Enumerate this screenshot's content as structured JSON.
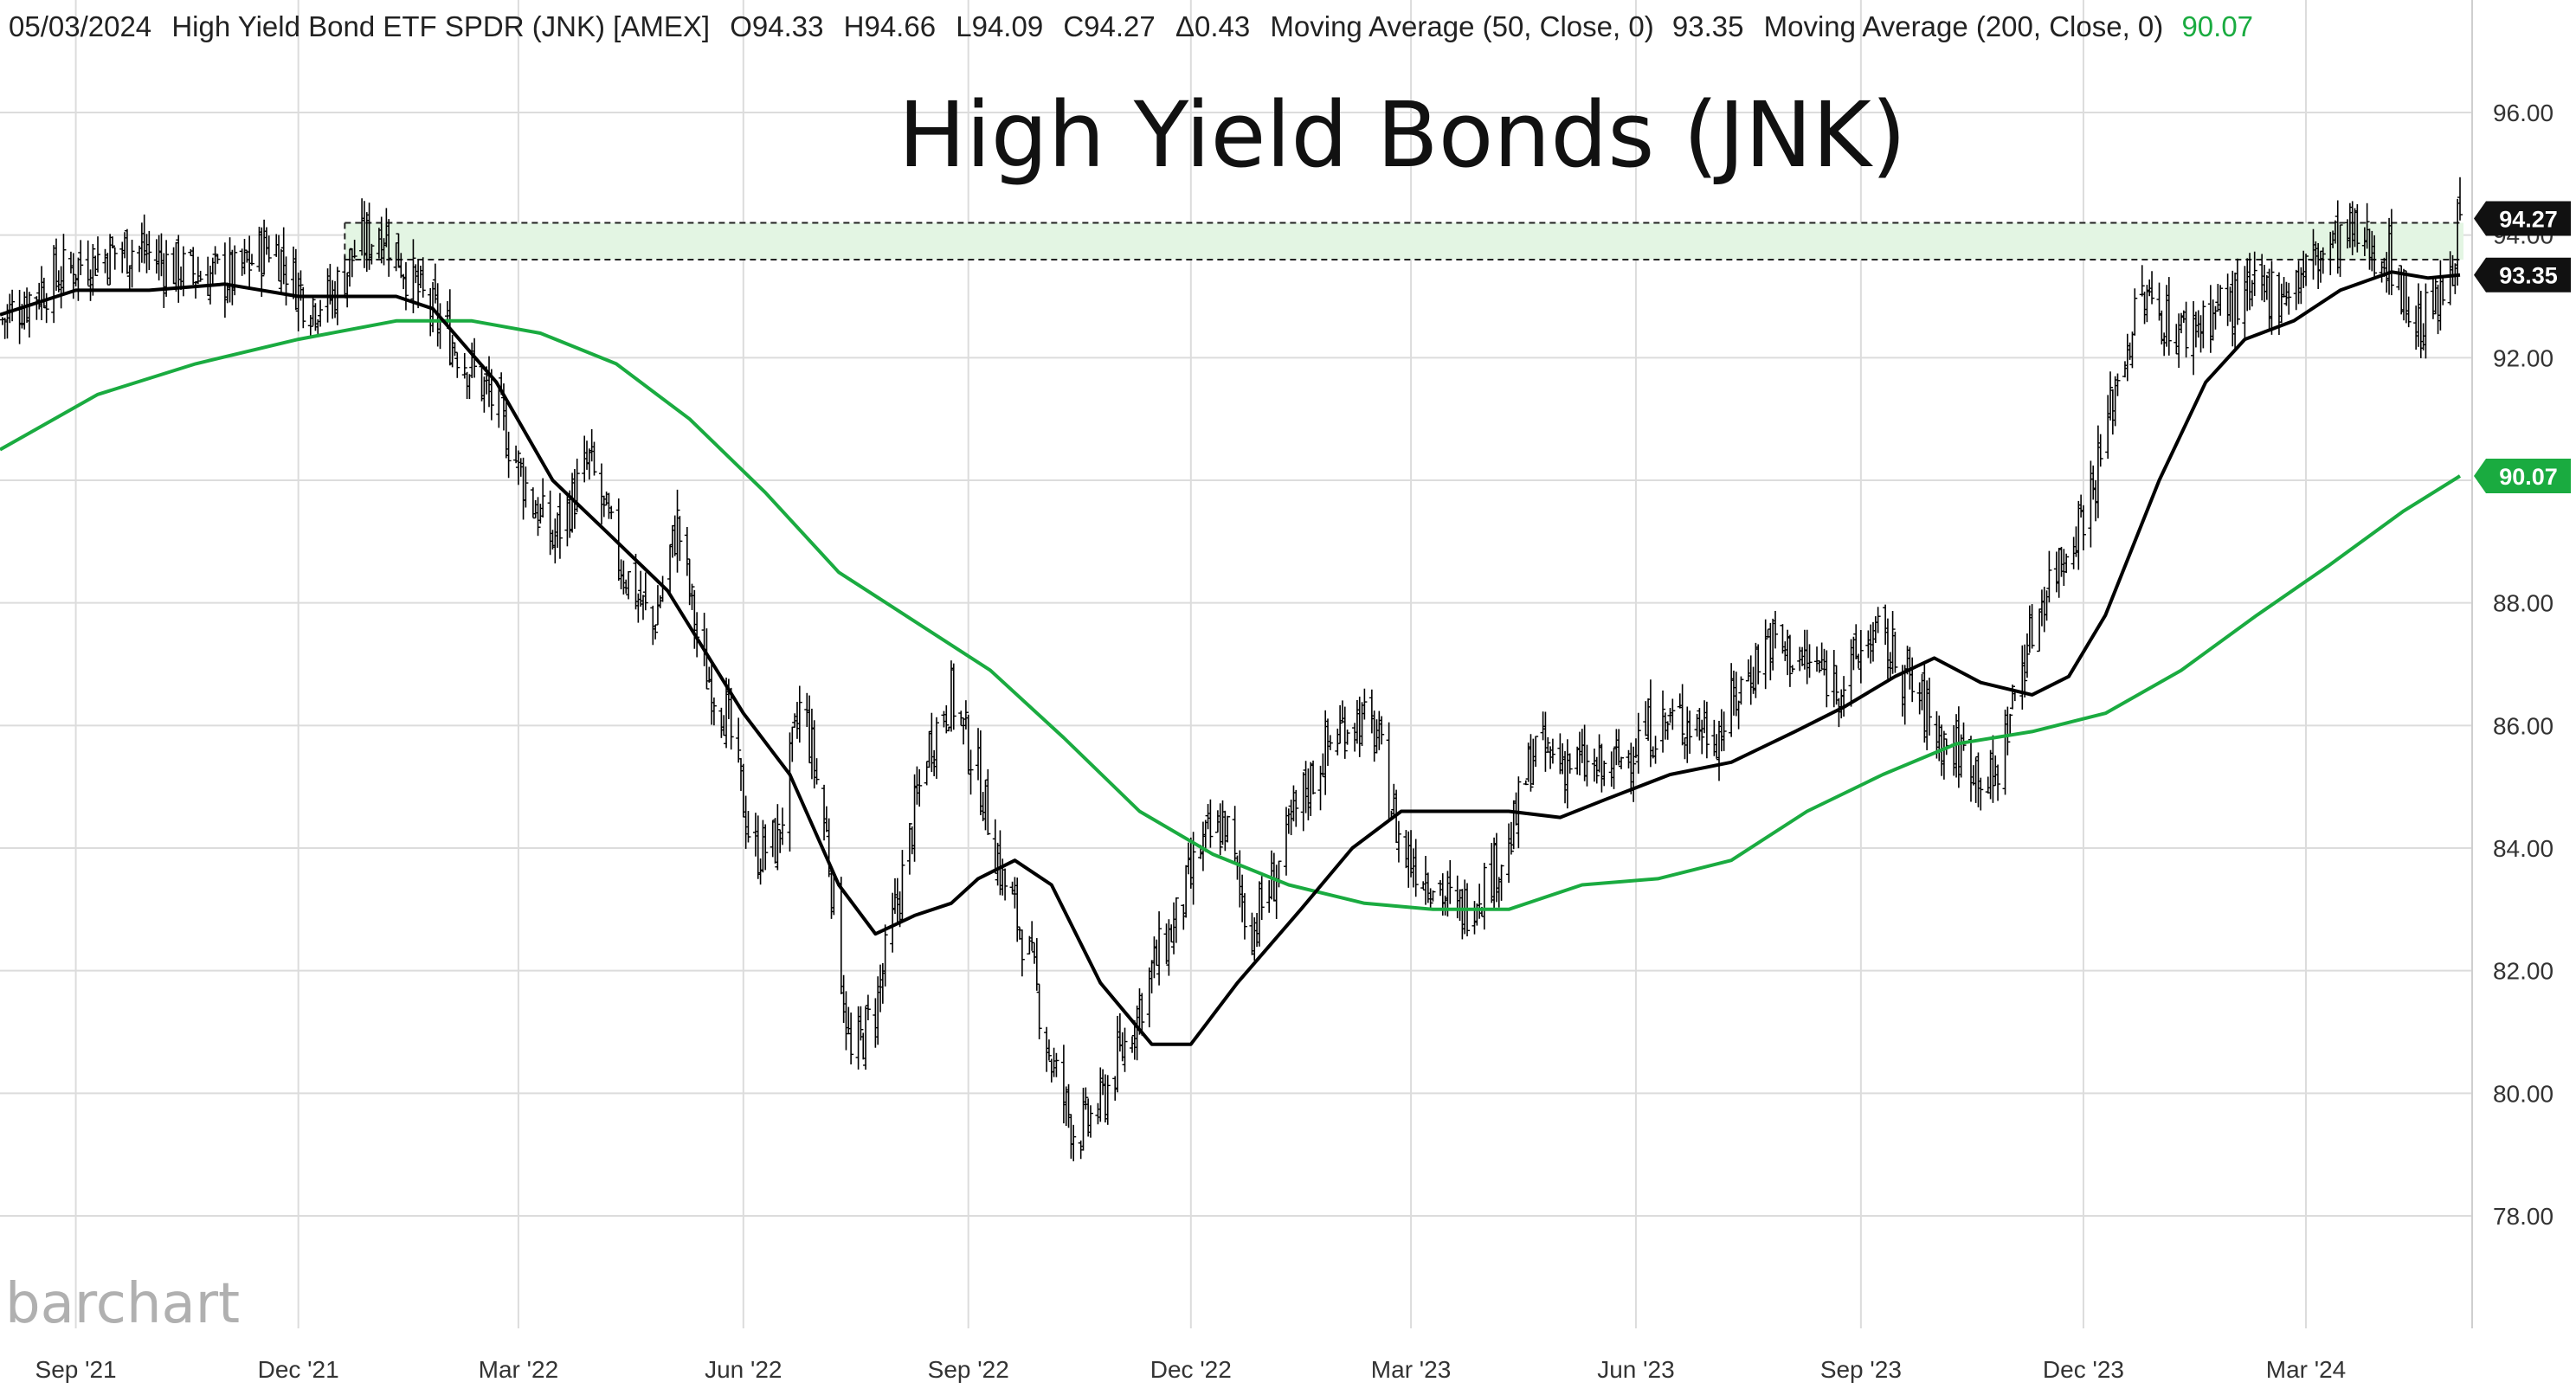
{
  "header": {
    "date": "05/03/2024",
    "symbol": "High Yield Bond ETF SPDR (JNK) [AMEX]",
    "open": "O94.33",
    "high": "H94.66",
    "low": "L94.09",
    "close": "C94.27",
    "change": "Δ0.43",
    "ma50_label": "Moving Average  (50, Close, 0)",
    "ma50_value": "93.35",
    "ma200_label": "Moving Average  (200, Close, 0)",
    "ma200_value": "90.07"
  },
  "logo": "barchart",
  "colors": {
    "price_bars": "#000000",
    "ma50": "#000000",
    "ma200": "#1aab40",
    "resistance_band": "#e3f5e3",
    "grid": "#dcdcdc"
  },
  "chart_data": {
    "type": "ohlc",
    "title": "High Yield Bonds (JNK)",
    "ylim": [
      76,
      97
    ],
    "y_ticks": [
      "78.00",
      "80.00",
      "82.00",
      "84.00",
      "86.00",
      "88.00",
      "90.00",
      "92.00",
      "94.00",
      "96.00"
    ],
    "x_ticks": [
      "Sep '21",
      "Dec '21",
      "Mar '22",
      "Jun '22",
      "Sep '22",
      "Dec '22",
      "Mar '23",
      "Jun '23",
      "Sep '23",
      "Dec '23",
      "Mar '24"
    ],
    "last_price_label": "94.27",
    "ma50_label": "93.35",
    "ma200_label": "90.07",
    "resistance_band": [
      93.6,
      94.2
    ],
    "price_path": [
      [
        "2021-08-01",
        92.6
      ],
      [
        "2021-08-20",
        93.2
      ],
      [
        "2021-09-05",
        93.6
      ],
      [
        "2021-09-25",
        93.8
      ],
      [
        "2021-10-15",
        93.4
      ],
      [
        "2021-11-05",
        93.3
      ],
      [
        "2021-11-20",
        93.9
      ],
      [
        "2021-12-05",
        92.9
      ],
      [
        "2021-12-15",
        93.0
      ],
      [
        "2021-12-25",
        93.8
      ],
      [
        "2022-01-05",
        94.1
      ],
      [
        "2022-01-20",
        93.0
      ],
      [
        "2022-02-05",
        92.1
      ],
      [
        "2022-02-20",
        91.2
      ],
      [
        "2022-03-05",
        89.8
      ],
      [
        "2022-03-15",
        89.0
      ],
      [
        "2022-03-30",
        90.3
      ],
      [
        "2022-04-10",
        88.8
      ],
      [
        "2022-04-25",
        87.6
      ],
      [
        "2022-05-05",
        89.3
      ],
      [
        "2022-05-15",
        87.0
      ],
      [
        "2022-05-25",
        86.2
      ],
      [
        "2022-06-05",
        83.9
      ],
      [
        "2022-06-15",
        84.1
      ],
      [
        "2022-06-25",
        86.5
      ],
      [
        "2022-07-05",
        84.2
      ],
      [
        "2022-07-15",
        80.5
      ],
      [
        "2022-07-25",
        81.4
      ],
      [
        "2022-08-05",
        83.5
      ],
      [
        "2022-08-15",
        85.6
      ],
      [
        "2022-08-25",
        86.5
      ],
      [
        "2022-09-05",
        85.2
      ],
      [
        "2022-09-15",
        83.5
      ],
      [
        "2022-09-25",
        82.4
      ],
      [
        "2022-10-05",
        80.5
      ],
      [
        "2022-10-15",
        79.3
      ],
      [
        "2022-10-25",
        79.8
      ],
      [
        "2022-11-05",
        80.9
      ],
      [
        "2022-11-15",
        82.0
      ],
      [
        "2022-11-25",
        82.8
      ],
      [
        "2022-12-05",
        84.0
      ],
      [
        "2022-12-15",
        84.4
      ],
      [
        "2022-12-25",
        82.6
      ],
      [
        "2023-01-05",
        83.6
      ],
      [
        "2023-01-15",
        84.8
      ],
      [
        "2023-01-25",
        85.6
      ],
      [
        "2023-02-05",
        86.2
      ],
      [
        "2023-02-15",
        85.8
      ],
      [
        "2023-02-25",
        84.0
      ],
      [
        "2023-03-10",
        83.5
      ],
      [
        "2023-03-20",
        82.9
      ],
      [
        "2023-03-30",
        83.4
      ],
      [
        "2023-04-10",
        84.0
      ],
      [
        "2023-04-20",
        85.6
      ],
      [
        "2023-05-05",
        85.4
      ],
      [
        "2023-05-20",
        85.2
      ],
      [
        "2023-06-05",
        85.9
      ],
      [
        "2023-06-20",
        86.1
      ],
      [
        "2023-07-05",
        85.9
      ],
      [
        "2023-07-15",
        86.7
      ],
      [
        "2023-07-25",
        87.4
      ],
      [
        "2023-08-10",
        87.0
      ],
      [
        "2023-08-25",
        86.7
      ],
      [
        "2023-09-05",
        87.5
      ],
      [
        "2023-09-15",
        87.1
      ],
      [
        "2023-09-25",
        86.4
      ],
      [
        "2023-10-05",
        85.7
      ],
      [
        "2023-10-15",
        85.5
      ],
      [
        "2023-10-25",
        85.0
      ],
      [
        "2023-11-05",
        86.9
      ],
      [
        "2023-11-15",
        88.2
      ],
      [
        "2023-11-25",
        89.0
      ],
      [
        "2023-12-05",
        89.9
      ],
      [
        "2023-12-15",
        91.7
      ],
      [
        "2023-12-25",
        93.0
      ],
      [
        "2024-01-10",
        92.4
      ],
      [
        "2024-01-25",
        92.8
      ],
      [
        "2024-02-10",
        93.0
      ],
      [
        "2024-02-25",
        93.2
      ],
      [
        "2024-03-10",
        93.8
      ],
      [
        "2024-03-20",
        94.0
      ],
      [
        "2024-04-05",
        93.6
      ],
      [
        "2024-04-15",
        92.5
      ],
      [
        "2024-04-25",
        92.9
      ],
      [
        "2024-05-03",
        94.27
      ]
    ],
    "ma50_path": [
      [
        "2021-08-01",
        92.7
      ],
      [
        "2021-09-01",
        93.1
      ],
      [
        "2021-10-01",
        93.1
      ],
      [
        "2021-11-01",
        93.2
      ],
      [
        "2021-12-01",
        93.0
      ],
      [
        "2021-12-20",
        93.0
      ],
      [
        "2022-01-10",
        93.0
      ],
      [
        "2022-01-25",
        92.8
      ],
      [
        "2022-02-20",
        91.6
      ],
      [
        "2022-03-15",
        90.0
      ],
      [
        "2022-04-05",
        89.2
      ],
      [
        "2022-05-01",
        88.2
      ],
      [
        "2022-06-01",
        86.2
      ],
      [
        "2022-06-20",
        85.2
      ],
      [
        "2022-07-10",
        83.4
      ],
      [
        "2022-07-25",
        82.6
      ],
      [
        "2022-08-10",
        82.9
      ],
      [
        "2022-08-25",
        83.1
      ],
      [
        "2022-09-05",
        83.5
      ],
      [
        "2022-09-20",
        83.8
      ],
      [
        "2022-10-05",
        83.4
      ],
      [
        "2022-10-25",
        81.8
      ],
      [
        "2022-11-15",
        80.8
      ],
      [
        "2022-12-01",
        80.8
      ],
      [
        "2022-12-20",
        81.8
      ],
      [
        "2023-01-15",
        83.0
      ],
      [
        "2023-02-05",
        84.0
      ],
      [
        "2023-02-25",
        84.6
      ],
      [
        "2023-03-20",
        84.6
      ],
      [
        "2023-04-10",
        84.6
      ],
      [
        "2023-05-01",
        84.5
      ],
      [
        "2023-05-20",
        84.8
      ],
      [
        "2023-06-15",
        85.2
      ],
      [
        "2023-07-10",
        85.4
      ],
      [
        "2023-08-05",
        85.9
      ],
      [
        "2023-08-25",
        86.3
      ],
      [
        "2023-09-15",
        86.8
      ],
      [
        "2023-10-01",
        87.1
      ],
      [
        "2023-10-20",
        86.7
      ],
      [
        "2023-11-10",
        86.5
      ],
      [
        "2023-11-25",
        86.8
      ],
      [
        "2023-12-10",
        87.8
      ],
      [
        "2024-01-01",
        90.0
      ],
      [
        "2024-01-20",
        91.6
      ],
      [
        "2024-02-05",
        92.3
      ],
      [
        "2024-02-25",
        92.6
      ],
      [
        "2024-03-15",
        93.1
      ],
      [
        "2024-04-05",
        93.4
      ],
      [
        "2024-04-20",
        93.3
      ],
      [
        "2024-05-03",
        93.35
      ]
    ],
    "ma200_path": [
      [
        "2021-08-01",
        90.5
      ],
      [
        "2021-09-10",
        91.4
      ],
      [
        "2021-10-20",
        91.9
      ],
      [
        "2021-12-01",
        92.3
      ],
      [
        "2022-01-10",
        92.6
      ],
      [
        "2022-02-10",
        92.6
      ],
      [
        "2022-03-10",
        92.4
      ],
      [
        "2022-04-10",
        91.9
      ],
      [
        "2022-05-10",
        91.0
      ],
      [
        "2022-06-10",
        89.8
      ],
      [
        "2022-07-10",
        88.5
      ],
      [
        "2022-08-10",
        87.7
      ],
      [
        "2022-09-10",
        86.9
      ],
      [
        "2022-10-10",
        85.8
      ],
      [
        "2022-11-10",
        84.6
      ],
      [
        "2022-12-10",
        83.9
      ],
      [
        "2023-01-10",
        83.4
      ],
      [
        "2023-02-10",
        83.1
      ],
      [
        "2023-03-10",
        83.0
      ],
      [
        "2023-04-10",
        83.0
      ],
      [
        "2023-05-10",
        83.4
      ],
      [
        "2023-06-10",
        83.5
      ],
      [
        "2023-07-10",
        83.8
      ],
      [
        "2023-08-10",
        84.6
      ],
      [
        "2023-09-10",
        85.2
      ],
      [
        "2023-10-10",
        85.7
      ],
      [
        "2023-11-10",
        85.9
      ],
      [
        "2023-12-10",
        86.2
      ],
      [
        "2024-01-10",
        86.9
      ],
      [
        "2024-02-10",
        87.8
      ],
      [
        "2024-03-10",
        88.6
      ],
      [
        "2024-04-10",
        89.5
      ],
      [
        "2024-05-03",
        90.07
      ]
    ]
  }
}
